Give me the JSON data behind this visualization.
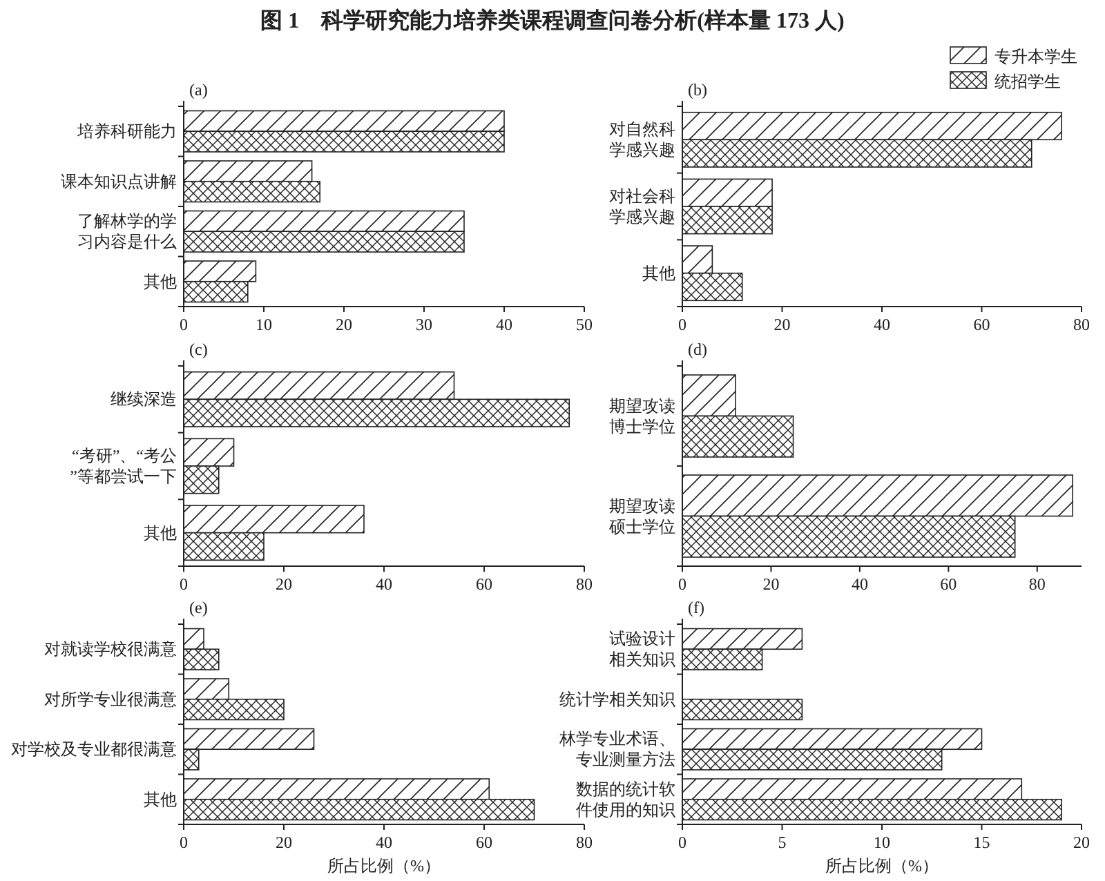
{
  "chart_data": [
    {
      "type": "bar",
      "orientation": "horizontal",
      "title": "图 1　科学研究能力培养类课程调查问卷分析(样本量 173 人)",
      "subtitle": "(a)",
      "categories": [
        "培养科研能力",
        "课本知识点讲解",
        "了解林学的学习内容是什么",
        "其他"
      ],
      "xlim": [
        0,
        50
      ],
      "xticks": [
        0,
        10,
        20,
        30,
        40,
        50
      ],
      "series": [
        {
          "color": "#222222",
          "values": [
            40,
            16,
            35,
            9
          ]
        },
        {
          "color": "#222222",
          "values": [
            40,
            17,
            35,
            8
          ]
        }
      ]
    },
    {
      "type": "bar",
      "orientation": "horizontal",
      "subtitle": "(b)",
      "legend": "top right",
      "categories": [
        "对自然科学感兴趣",
        "对社会科学感兴趣",
        "其他"
      ],
      "xlim": [
        0,
        80
      ],
      "xticks": [
        0,
        20,
        40,
        60,
        80
      ],
      "series": [
        {
          "name": "专升本学生",
          "color": "#222222",
          "values": [
            76,
            18,
            6
          ]
        },
        {
          "name": "统招学生",
          "color": "#222222",
          "values": [
            70,
            18,
            12
          ]
        }
      ]
    },
    {
      "type": "bar",
      "orientation": "horizontal",
      "subtitle": "(c)",
      "categories": [
        "继续深造",
        "“考研”、“考公”等都尝试一下",
        "其他"
      ],
      "xlim": [
        0,
        80
      ],
      "xticks": [
        0,
        20,
        40,
        60,
        80
      ],
      "series": [
        {
          "color": "#222222",
          "values": [
            54,
            10,
            36
          ]
        },
        {
          "color": "#222222",
          "values": [
            77,
            7,
            16
          ]
        }
      ]
    },
    {
      "type": "bar",
      "orientation": "horizontal",
      "subtitle": "(d)",
      "categories": [
        "期望攻读博士学位",
        "期望攻读硕士学位"
      ],
      "xlim": [
        0,
        90
      ],
      "xticks": [
        0,
        20,
        40,
        60,
        80
      ],
      "series": [
        {
          "color": "#222222",
          "values": [
            12,
            88
          ]
        },
        {
          "color": "#222222",
          "values": [
            25,
            75
          ]
        }
      ]
    },
    {
      "type": "bar",
      "orientation": "horizontal",
      "subtitle": "(e)",
      "xlabel": "所占比例（%）",
      "categories": [
        "对就读学校很满意",
        "对所学专业很满意",
        "对学校及专业都很满意",
        "其他"
      ],
      "xlim": [
        0,
        80
      ],
      "xticks": [
        0,
        20,
        40,
        60,
        80
      ],
      "series": [
        {
          "color": "#222222",
          "values": [
            4,
            9,
            26,
            61
          ]
        },
        {
          "color": "#222222",
          "values": [
            7,
            20,
            3,
            70
          ]
        }
      ]
    },
    {
      "type": "bar",
      "orientation": "horizontal",
      "subtitle": "(f)",
      "xlabel": "所占比例（%）",
      "categories": [
        "试验设计相关知识",
        "统计学相关知识",
        "林学专业术语、专业测量方法",
        "数据的统计软件使用的知识"
      ],
      "xlim": [
        0,
        20
      ],
      "xticks": [
        0,
        5,
        10,
        15,
        20
      ],
      "series": [
        {
          "color": "#222222",
          "values": [
            6,
            null,
            15,
            17
          ]
        },
        {
          "color": "#222222",
          "values": [
            4,
            6,
            13,
            19
          ]
        }
      ]
    }
  ]
}
